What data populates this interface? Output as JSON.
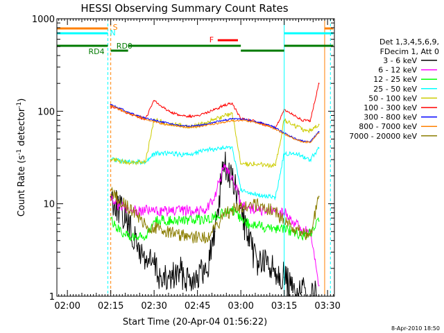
{
  "chart_data": {
    "type": "line",
    "title": "HESSI Observing Summary Count Rates",
    "xlabel": "Start Time (20-Apr-04 01:56:22)",
    "ylabel_main": "Count Rate (s",
    "ylabel_sup1": "-1",
    "ylabel_mid": " detector",
    "ylabel_sup2": "-1",
    "ylabel_end": ")",
    "y_scale": "log",
    "ylim": [
      1,
      1000
    ],
    "y_ticks": [
      "1",
      "10",
      "100",
      "1000"
    ],
    "x_ticks": [
      "02:00",
      "02:15",
      "02:30",
      "02:45",
      "03:00",
      "03:15",
      "03:30"
    ],
    "timestamp": "8-Apr-2010 18:50",
    "legend_header": [
      "Det 1,3,4,5,6,9,",
      "FDecim 1, Att 0"
    ],
    "legend_position": "right",
    "state_labels": {
      "S": "S",
      "N": "N",
      "F": "F",
      "RD0": "RD0",
      "RD4": "RD4"
    },
    "series": [
      {
        "name": "3 - 6 keV",
        "color": "#000000",
        "x": [
          "02:15",
          "02:18",
          "02:21",
          "02:24",
          "02:27",
          "02:30",
          "02:33",
          "02:36",
          "02:39",
          "02:42",
          "02:45",
          "02:48",
          "02:51",
          "02:54",
          "02:57",
          "03:00",
          "03:03",
          "03:06",
          "03:09",
          "03:12",
          "03:15",
          "03:18",
          "03:21",
          "03:24",
          "03:27"
        ],
        "values": [
          12,
          9,
          6,
          3.5,
          2.5,
          2.2,
          1.4,
          1.6,
          1.8,
          1.6,
          1.7,
          1.8,
          5,
          28,
          18,
          9,
          3.5,
          2.4,
          2.2,
          2.0,
          1.6,
          1.1,
          1.1,
          1.0,
          1.0
        ]
      },
      {
        "name": "6 - 12 keV",
        "color": "#ff00ff",
        "x": [
          "02:15",
          "02:18",
          "02:21",
          "02:24",
          "02:27",
          "02:30",
          "02:33",
          "02:36",
          "02:39",
          "02:42",
          "02:45",
          "02:48",
          "02:51",
          "02:54",
          "02:57",
          "03:00",
          "03:03",
          "03:06",
          "03:09",
          "03:12",
          "03:15",
          "03:18",
          "03:21",
          "03:24",
          "03:27"
        ],
        "values": [
          11,
          9.5,
          9,
          8.5,
          8.5,
          8.3,
          8.4,
          8.2,
          8.3,
          8.5,
          8.5,
          8.7,
          12,
          24,
          20,
          10,
          9,
          8.5,
          8.3,
          8.2,
          8.0,
          6.5,
          5.2,
          4.8,
          1.3
        ]
      },
      {
        "name": "12 - 25 keV",
        "color": "#00ff00",
        "x": [
          "02:15",
          "02:18",
          "02:21",
          "02:24",
          "02:27",
          "02:30",
          "02:33",
          "02:36",
          "02:39",
          "02:42",
          "02:45",
          "02:48",
          "02:51",
          "02:54",
          "02:57",
          "03:00",
          "03:03",
          "03:06",
          "03:09",
          "03:12",
          "03:15",
          "03:18",
          "03:21",
          "03:24",
          "03:27"
        ],
        "values": [
          7,
          5,
          4.4,
          4.2,
          4.3,
          6.5,
          6.6,
          6.7,
          6.6,
          6.6,
          6.7,
          6.8,
          7.2,
          8,
          8.3,
          7.0,
          6.0,
          5.8,
          5.6,
          5.5,
          5.5,
          5.0,
          4.5,
          4.8,
          6.5
        ]
      },
      {
        "name": "25 - 50 keV",
        "color": "#00ffff",
        "x": [
          "02:15",
          "02:18",
          "02:21",
          "02:24",
          "02:27",
          "02:30",
          "02:33",
          "02:36",
          "02:39",
          "02:42",
          "02:45",
          "02:48",
          "02:51",
          "02:54",
          "02:57",
          "03:00",
          "03:03",
          "03:06",
          "03:09",
          "03:12",
          "03:15",
          "03:18",
          "03:21",
          "03:24",
          "03:27"
        ],
        "values": [
          30,
          29,
          29,
          28.5,
          28,
          35,
          35,
          35,
          34,
          34,
          36,
          38,
          39,
          40,
          41,
          14,
          13,
          12.5,
          12,
          11.8,
          35,
          35,
          33,
          30,
          40
        ]
      },
      {
        "name": "50 - 100 keV",
        "color": "#cccc00",
        "x": [
          "02:15",
          "02:18",
          "02:21",
          "02:24",
          "02:27",
          "02:30",
          "02:33",
          "02:36",
          "02:39",
          "02:42",
          "02:45",
          "02:48",
          "02:51",
          "02:54",
          "02:57",
          "03:00",
          "03:03",
          "03:06",
          "03:09",
          "03:12",
          "03:15",
          "03:18",
          "03:21",
          "03:24",
          "03:27"
        ],
        "values": [
          30,
          29,
          28,
          28,
          28,
          82,
          76,
          73,
          70,
          68,
          70,
          75,
          82,
          88,
          95,
          27,
          27,
          27,
          26,
          26,
          80,
          72,
          64,
          62,
          72
        ]
      },
      {
        "name": "100 - 300 keV",
        "color": "#ff0000",
        "x": [
          "02:15",
          "02:18",
          "02:21",
          "02:24",
          "02:27",
          "02:30",
          "02:33",
          "02:36",
          "02:39",
          "02:42",
          "02:45",
          "02:48",
          "02:51",
          "02:54",
          "02:57",
          "03:00",
          "03:03",
          "03:06",
          "03:09",
          "03:12",
          "03:15",
          "03:18",
          "03:21",
          "03:24",
          "03:27"
        ],
        "values": [
          112,
          105,
          95,
          88,
          82,
          130,
          110,
          97,
          90,
          88,
          90,
          96,
          105,
          115,
          122,
          82,
          80,
          76,
          70,
          66,
          105,
          92,
          80,
          78,
          200
        ]
      },
      {
        "name": "300 - 800 keV",
        "color": "#0000ff",
        "x": [
          "02:15",
          "02:18",
          "02:21",
          "02:24",
          "02:27",
          "02:30",
          "02:33",
          "02:36",
          "02:39",
          "02:42",
          "02:45",
          "02:48",
          "02:51",
          "02:54",
          "02:57",
          "03:00",
          "03:03",
          "03:06",
          "03:09",
          "03:12",
          "03:15",
          "03:18",
          "03:21",
          "03:24",
          "03:27"
        ],
        "values": [
          118,
          108,
          98,
          90,
          84,
          80,
          76,
          73,
          70,
          69,
          70,
          72,
          76,
          80,
          83,
          82,
          80,
          76,
          72,
          66,
          58,
          52,
          48,
          47,
          60
        ]
      },
      {
        "name": "800 - 7000 keV",
        "color": "#ff8000",
        "x": [
          "02:15",
          "02:18",
          "02:21",
          "02:24",
          "02:27",
          "02:30",
          "02:33",
          "02:36",
          "02:39",
          "02:42",
          "02:45",
          "02:48",
          "02:51",
          "02:54",
          "02:57",
          "03:00",
          "03:03",
          "03:06",
          "03:09",
          "03:12",
          "03:15",
          "03:18",
          "03:21",
          "03:24",
          "03:27"
        ],
        "values": [
          115,
          105,
          96,
          88,
          82,
          77,
          73,
          70,
          68,
          67,
          68,
          70,
          73,
          76,
          79,
          80,
          78,
          74,
          70,
          64,
          57,
          51,
          47,
          46,
          58
        ]
      },
      {
        "name": "7000 - 20000 keV",
        "color": "#8b7d00",
        "x": [
          "02:15",
          "02:18",
          "02:21",
          "02:24",
          "02:27",
          "02:30",
          "02:33",
          "02:36",
          "02:39",
          "02:42",
          "02:45",
          "02:48",
          "02:51",
          "02:54",
          "02:57",
          "03:00",
          "03:03",
          "03:06",
          "03:09",
          "03:12",
          "03:15",
          "03:18",
          "03:21",
          "03:24",
          "03:27"
        ],
        "values": [
          14,
          11,
          9,
          7.5,
          6.0,
          5.5,
          5.0,
          4.8,
          4.5,
          4.4,
          4.3,
          4.3,
          5.5,
          7.5,
          8.5,
          9.5,
          9.8,
          9.6,
          9.0,
          8.5,
          6.2,
          5.5,
          5.0,
          4.5,
          12
        ]
      }
    ]
  }
}
